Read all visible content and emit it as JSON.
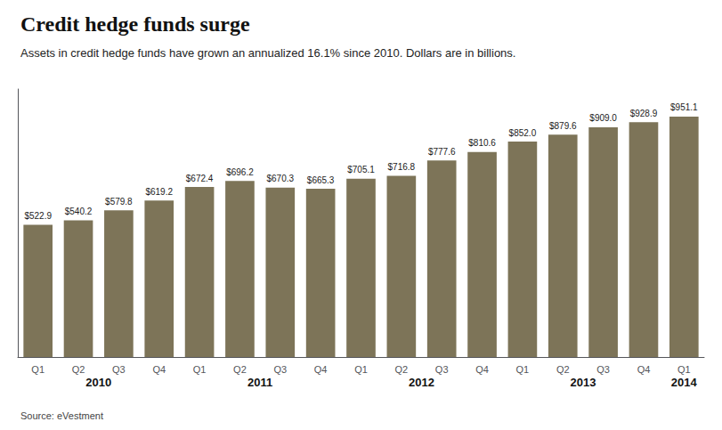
{
  "chart_data": {
    "type": "bar",
    "title": "Credit hedge funds surge",
    "subtitle": "Assets in credit hedge funds have grown an annualized 16.1% since 2010. Dollars are in billions.",
    "source": "Source: eVestment",
    "categories": [
      "Q1",
      "Q2",
      "Q3",
      "Q4",
      "Q1",
      "Q2",
      "Q3",
      "Q4",
      "Q1",
      "Q2",
      "Q3",
      "Q4",
      "Q1",
      "Q2",
      "Q3",
      "Q4",
      "Q1"
    ],
    "years": [
      "2010",
      "2010",
      "2010",
      "2010",
      "2011",
      "2011",
      "2011",
      "2011",
      "2012",
      "2012",
      "2012",
      "2012",
      "2013",
      "2013",
      "2013",
      "2013",
      "2014"
    ],
    "values": [
      522.9,
      540.2,
      579.8,
      619.2,
      672.4,
      696.2,
      670.3,
      665.3,
      705.1,
      716.8,
      777.6,
      810.6,
      852.0,
      879.6,
      909.0,
      928.9,
      951.1
    ],
    "value_labels": [
      "$522.9",
      "$540.2",
      "$579.8",
      "$619.2",
      "$672.4",
      "$696.2",
      "$670.3",
      "$665.3",
      "$705.1",
      "$716.8",
      "$777.6",
      "$810.6",
      "$852.0",
      "$879.6",
      "$909.0",
      "$928.9",
      "$951.1"
    ],
    "color": "#7d7458",
    "ylim": [
      0,
      1060
    ],
    "grid": false,
    "data_labels": true,
    "tick_labels": "x"
  }
}
